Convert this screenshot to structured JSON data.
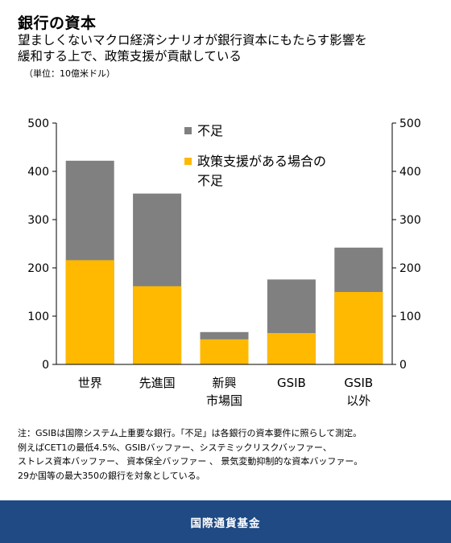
{
  "header": {
    "title": "銀行の資本",
    "subtitle_lines": [
      "望ましくないマクロ経済シナリオが銀行資本にもたらす影響を",
      "緩和する上で、政策支援が貢献している"
    ],
    "unit": "（単位：10億米ドル）"
  },
  "chart_data": {
    "type": "bar",
    "stacked": false,
    "categories": [
      [
        "世界"
      ],
      [
        "先進国"
      ],
      [
        "新興",
        "市場国"
      ],
      [
        "GSIB"
      ],
      [
        "GSIB",
        "以外"
      ]
    ],
    "series": [
      {
        "name": "不足",
        "color": "#808080",
        "values": [
          422,
          354,
          67,
          176,
          242
        ]
      },
      {
        "name": "政策支援がある場合の不足",
        "color": "#ffb900",
        "values": [
          216,
          162,
          52,
          65,
          150
        ]
      }
    ],
    "legend_lines": [
      [
        "不足"
      ],
      [
        "政策支援がある場合の",
        "不足"
      ]
    ],
    "ylim": [
      0,
      500
    ],
    "yticks": [
      0,
      100,
      200,
      300,
      400,
      500
    ],
    "dual_y_axis": true,
    "legend_placement": "top-center"
  },
  "note": {
    "lines": [
      "注：GSIBは国際システム上重要な銀行。「不足」は各銀行の資本要件に照らして測定。",
      "例えばCET1の最低4.5%、GSIBバッファー、システミックリスクバッファー、",
      "ストレス資本バッファー、 資本保全バッファー 、 景気変動抑制的な資本バッファー。",
      "29か国等の最大350の銀行を対象としている。"
    ]
  },
  "footer": {
    "label": "国際通貨基金"
  }
}
